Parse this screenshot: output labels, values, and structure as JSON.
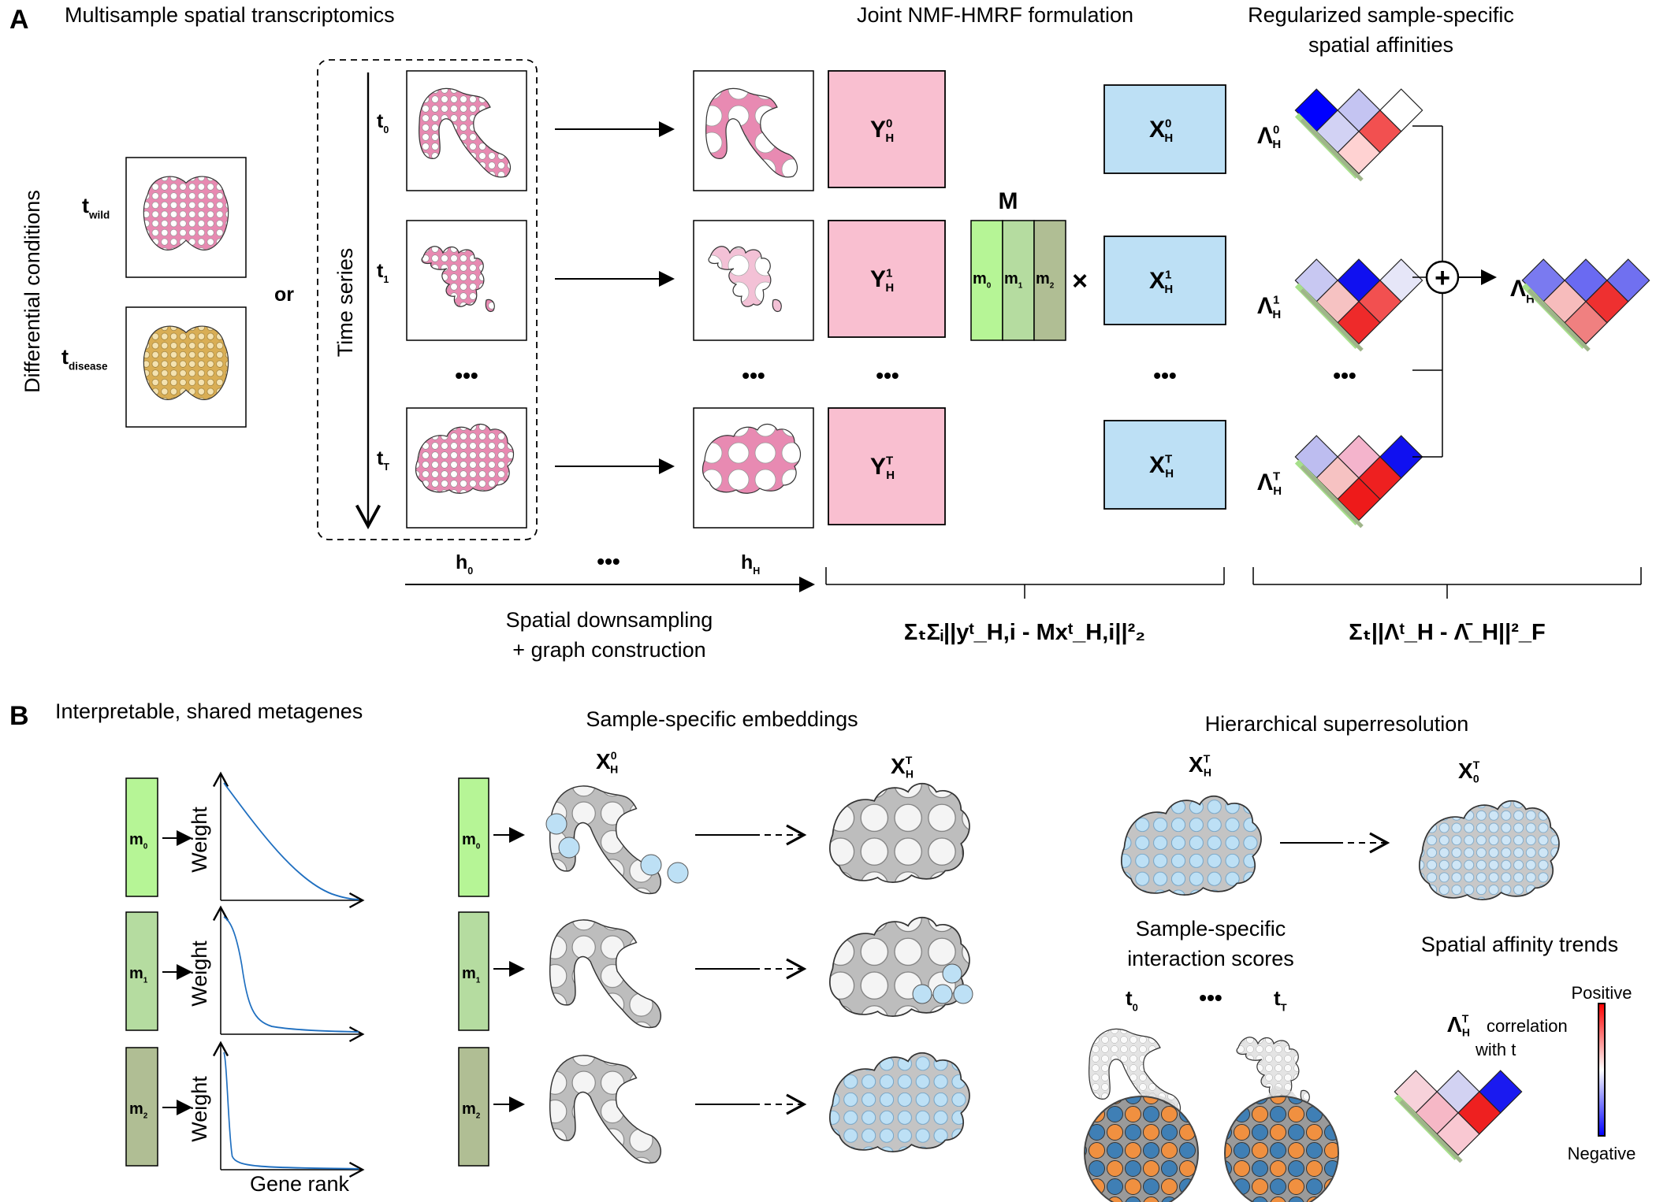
{
  "panelA": {
    "label": "A",
    "title_multisample": "Multisample spatial transcriptomics",
    "title_joint": "Joint NMF-HMRF formulation",
    "title_reg_1": "Regularized sample-specific",
    "title_reg_2": "spatial affinities",
    "diff_conditions": "Differential conditions",
    "t_wild": "t",
    "t_wild_sub": "wild",
    "t_disease": "t",
    "t_disease_sub": "disease",
    "or": "or",
    "time_series": "Time series",
    "t0": "t",
    "t0_sub": "0",
    "t1": "t",
    "t1_sub": "1",
    "tT": "t",
    "tT_sub": "T",
    "ellipsis": "•••",
    "h0": "h",
    "h0_sub": "0",
    "hH": "h",
    "hH_sub": "H",
    "downsampling_1": "Spatial downsampling",
    "downsampling_2": "+ graph construction",
    "Y": "Y",
    "X": "X",
    "H": "H",
    "sup0": "0",
    "sup1": "1",
    "supT": "T",
    "M": "M",
    "m0": "m",
    "m0_sub": "0",
    "m1": "m",
    "m1_sub": "1",
    "m2": "m",
    "m2_sub": "2",
    "times": "×",
    "lambda": "Λ",
    "lambda_bar": "Λ̄",
    "plus": "+",
    "loss1": "ΣₜΣᵢ||yᵗ_H,i - Mxᵗ_H,i||²₂",
    "loss2": "Σₜ||Λᵗ_H - Λ̄_H||²_F"
  },
  "panelB": {
    "label": "B",
    "title_metagenes": "Interpretable, shared metagenes",
    "title_embeddings": "Sample-specific embeddings",
    "title_superres": "Hierarchical superresolution",
    "weight": "Weight",
    "gene_rank": "Gene rank",
    "m": "m",
    "m0_sub": "0",
    "m1_sub": "1",
    "m2_sub": "2",
    "X": "X",
    "H": "H",
    "sub0": "0",
    "sup0": "0",
    "supT": "T",
    "interaction_1": "Sample-specific",
    "interaction_2": "interaction scores",
    "affinity_trends": "Spatial affinity trends",
    "t0": "t",
    "t0_sub": "0",
    "tT": "t",
    "tT_sub": "T",
    "ellipsis": "•••",
    "lambda": "Λ",
    "correlation": "correlation",
    "with_t": "with t",
    "positive": "Positive",
    "negative": "Negative"
  },
  "colors": {
    "Y_pink": "#f9bfd0",
    "X_blue": "#bde0f5",
    "m0_green": "#b6f596",
    "m1_green": "#b5dca0",
    "m2_green": "#b0be94",
    "tissue_pink": "#e88ab2",
    "tissue_gold": "#e0b866",
    "tissue_grey": "#bdbdbd",
    "spot_blue": "#3f7fb5",
    "spot_orange": "#f09040",
    "curve_blue": "#1f6fc0"
  }
}
